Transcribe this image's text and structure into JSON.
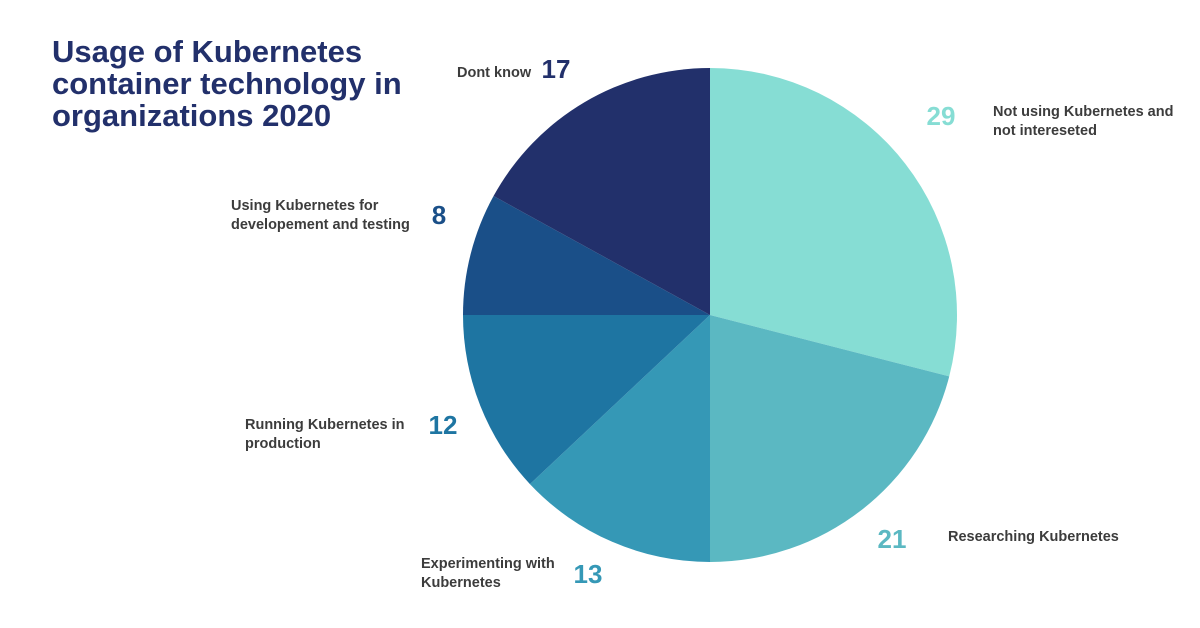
{
  "chart_data": {
    "type": "pie",
    "title_lines": [
      "Usage of Kubernetes",
      "container technology in",
      "organizations 2020"
    ],
    "start": "12 o'clock",
    "direction": "clockwise",
    "slices": [
      {
        "label": "Not using Kubernetes and not intereseted",
        "label_lines": [
          "Not using Kubernetes and",
          "not intereseted"
        ],
        "value": 29,
        "color": "#86ddd4",
        "value_color": "#86ddd4"
      },
      {
        "label": "Researching Kubernetes",
        "label_lines": [
          "Researching Kubernetes"
        ],
        "value": 21,
        "color": "#5bb8c2",
        "value_color": "#5bb8c2"
      },
      {
        "label": "Experimenting with Kubernetes",
        "label_lines": [
          "Experimenting with",
          "Kubernetes"
        ],
        "value": 13,
        "color": "#3598b6",
        "value_color": "#3598b6"
      },
      {
        "label": "Running Kubernetes in production",
        "label_lines": [
          "Running Kubernetes in",
          "production"
        ],
        "value": 12,
        "color": "#1e75a2",
        "value_color": "#1e75a2"
      },
      {
        "label": "Using Kubernetes for developement and testing",
        "label_lines": [
          "Using Kubernetes for",
          "developement and testing"
        ],
        "value": 8,
        "color": "#1a4f88",
        "value_color": "#1a4f88"
      },
      {
        "label": "Dont know",
        "label_lines": [
          "Dont know"
        ],
        "value": 17,
        "color": "#22306b",
        "value_color": "#22306b"
      }
    ]
  }
}
